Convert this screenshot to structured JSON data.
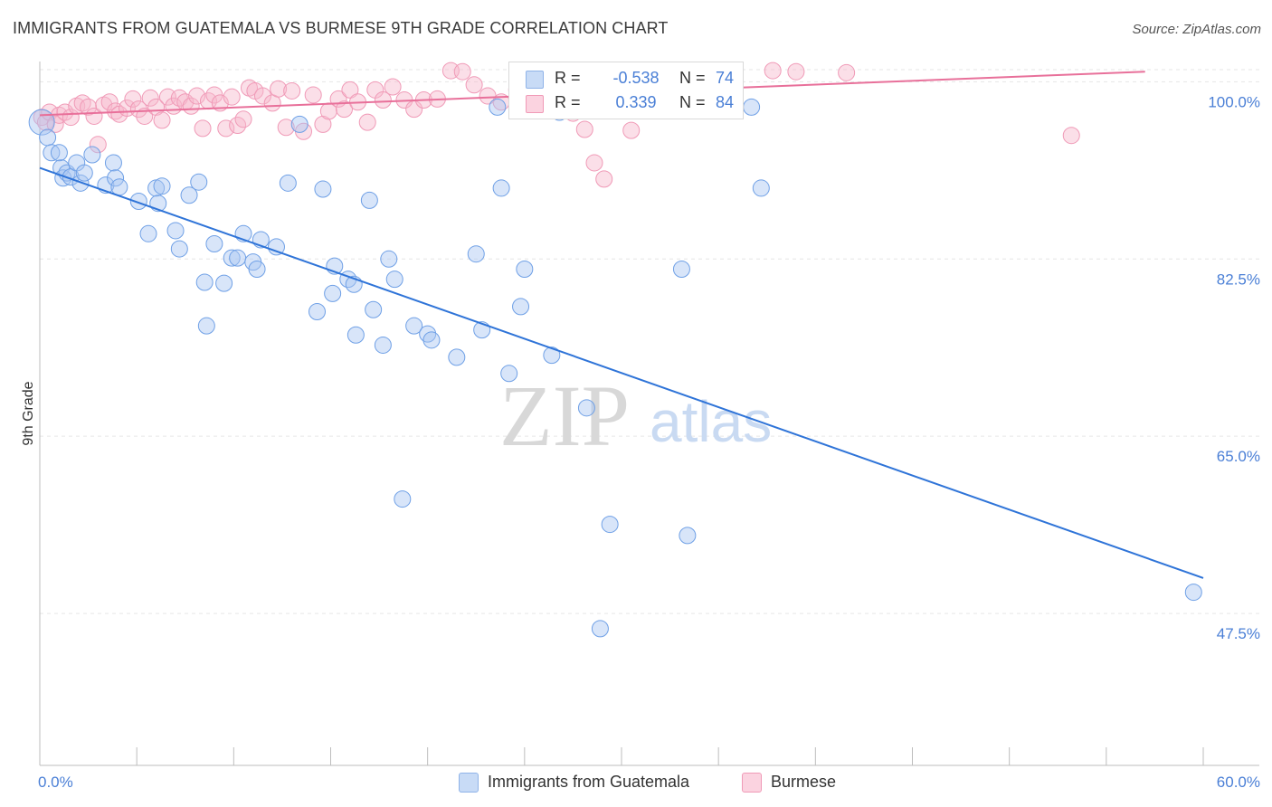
{
  "title": "IMMIGRANTS FROM GUATEMALA VS BURMESE 9TH GRADE CORRELATION CHART",
  "source": "Source: ZipAtlas.com",
  "watermark": {
    "zip": "ZIP",
    "atlas": "atlas"
  },
  "legend": {
    "rows": [
      {
        "r_label": "R =",
        "r_value": "-0.538",
        "n_label": "N =",
        "n_value": "74",
        "color": "#a9c6f2"
      },
      {
        "r_label": "R =",
        "r_value": "0.339",
        "n_label": "N =",
        "n_value": "84",
        "color": "#f7b8cc"
      }
    ]
  },
  "bottom_legend": {
    "items": [
      {
        "label": "Immigrants from Guatemala",
        "color": "#a9c6f2"
      },
      {
        "label": "Burmese",
        "color": "#f7b8cc"
      }
    ]
  },
  "chart_data": {
    "type": "scatter",
    "title": "IMMIGRANTS FROM GUATEMALA VS BURMESE 9TH GRADE CORRELATION CHART",
    "xlabel": "",
    "ylabel": "9th Grade",
    "xlim": [
      0,
      60
    ],
    "ylim": [
      32.5,
      102
    ],
    "x_tick_labels": [
      "0.0%",
      "60.0%"
    ],
    "y_ticks": [
      47.5,
      65.0,
      82.5,
      100.0
    ],
    "y_tick_labels": [
      "47.5%",
      "65.0%",
      "82.5%",
      "100.0%"
    ],
    "colors": {
      "guatemala": "#6fa0e6",
      "guatemala_line": "#2f74d8",
      "burmese": "#f09ab7",
      "burmese_line": "#e8709a"
    },
    "series": [
      {
        "name": "Immigrants from Guatemala",
        "trend": {
          "x": [
            0,
            60
          ],
          "y": [
            91.5,
            51.0
          ]
        },
        "points": [
          [
            0.1,
            96.0
          ],
          [
            0.4,
            94.5
          ],
          [
            0.6,
            93.0
          ],
          [
            1.1,
            91.5
          ],
          [
            1.0,
            93.0
          ],
          [
            1.2,
            90.5
          ],
          [
            1.4,
            91.0
          ],
          [
            1.6,
            90.6
          ],
          [
            1.9,
            92.0
          ],
          [
            2.1,
            90.0
          ],
          [
            2.3,
            91.0
          ],
          [
            2.7,
            92.8
          ],
          [
            3.4,
            89.8
          ],
          [
            3.8,
            92.0
          ],
          [
            3.9,
            90.5
          ],
          [
            4.1,
            89.6
          ],
          [
            5.1,
            88.2
          ],
          [
            5.6,
            85.0
          ],
          [
            6.0,
            89.5
          ],
          [
            6.1,
            88.0
          ],
          [
            6.3,
            89.7
          ],
          [
            7.0,
            85.3
          ],
          [
            7.2,
            83.5
          ],
          [
            7.7,
            88.8
          ],
          [
            8.2,
            90.1
          ],
          [
            8.5,
            80.2
          ],
          [
            8.6,
            75.9
          ],
          [
            9.0,
            84.0
          ],
          [
            9.5,
            80.1
          ],
          [
            9.9,
            82.6
          ],
          [
            10.2,
            82.6
          ],
          [
            10.5,
            85.0
          ],
          [
            11.0,
            82.2
          ],
          [
            11.4,
            84.4
          ],
          [
            11.2,
            81.5
          ],
          [
            12.2,
            83.7
          ],
          [
            12.8,
            90.0
          ],
          [
            13.4,
            95.8
          ],
          [
            14.3,
            77.3
          ],
          [
            14.6,
            89.4
          ],
          [
            15.1,
            79.1
          ],
          [
            15.2,
            81.8
          ],
          [
            15.9,
            80.5
          ],
          [
            16.2,
            80.0
          ],
          [
            16.3,
            75.0
          ],
          [
            17.0,
            88.3
          ],
          [
            17.2,
            77.5
          ],
          [
            17.7,
            74.0
          ],
          [
            18.0,
            82.5
          ],
          [
            18.3,
            80.5
          ],
          [
            18.7,
            58.8
          ],
          [
            19.3,
            75.9
          ],
          [
            20.0,
            75.1
          ],
          [
            20.2,
            74.5
          ],
          [
            21.5,
            72.8
          ],
          [
            22.5,
            83.0
          ],
          [
            22.8,
            75.5
          ],
          [
            23.6,
            97.5
          ],
          [
            23.8,
            89.5
          ],
          [
            24.2,
            71.2
          ],
          [
            24.8,
            77.8
          ],
          [
            25.0,
            81.5
          ],
          [
            26.4,
            73.0
          ],
          [
            26.8,
            97.0
          ],
          [
            28.2,
            67.8
          ],
          [
            28.9,
            46.0
          ],
          [
            29.4,
            56.3
          ],
          [
            32.3,
            97.8
          ],
          [
            33.1,
            81.5
          ],
          [
            33.4,
            55.2
          ],
          [
            35.3,
            98.0
          ],
          [
            36.7,
            97.5
          ],
          [
            37.2,
            89.5
          ],
          [
            59.5,
            49.6
          ]
        ]
      },
      {
        "name": "Burmese",
        "trend": {
          "x": [
            0,
            57
          ],
          "y": [
            96.7,
            101.0
          ]
        },
        "points": [
          [
            0.1,
            96.5
          ],
          [
            0.3,
            96.0
          ],
          [
            0.5,
            97.0
          ],
          [
            0.8,
            95.8
          ],
          [
            1.0,
            96.7
          ],
          [
            1.3,
            97.0
          ],
          [
            1.6,
            96.5
          ],
          [
            1.9,
            97.6
          ],
          [
            2.2,
            97.9
          ],
          [
            2.5,
            97.5
          ],
          [
            2.8,
            96.6
          ],
          [
            3.0,
            93.8
          ],
          [
            3.3,
            97.7
          ],
          [
            3.6,
            98.0
          ],
          [
            3.9,
            97.1
          ],
          [
            4.1,
            96.8
          ],
          [
            4.5,
            97.4
          ],
          [
            4.8,
            98.3
          ],
          [
            5.1,
            97.3
          ],
          [
            5.4,
            96.6
          ],
          [
            5.7,
            98.4
          ],
          [
            6.0,
            97.5
          ],
          [
            6.3,
            96.2
          ],
          [
            6.6,
            98.5
          ],
          [
            6.9,
            97.6
          ],
          [
            7.2,
            98.4
          ],
          [
            7.5,
            98.0
          ],
          [
            7.8,
            97.6
          ],
          [
            8.1,
            98.6
          ],
          [
            8.4,
            95.4
          ],
          [
            8.7,
            98.1
          ],
          [
            9.0,
            98.7
          ],
          [
            9.3,
            97.9
          ],
          [
            9.6,
            95.4
          ],
          [
            9.9,
            98.5
          ],
          [
            10.2,
            95.7
          ],
          [
            10.5,
            96.3
          ],
          [
            10.8,
            99.4
          ],
          [
            11.1,
            99.1
          ],
          [
            11.5,
            98.6
          ],
          [
            12.0,
            97.9
          ],
          [
            12.3,
            99.3
          ],
          [
            12.7,
            95.5
          ],
          [
            13.0,
            99.1
          ],
          [
            13.6,
            95.1
          ],
          [
            14.1,
            98.7
          ],
          [
            14.6,
            95.8
          ],
          [
            14.9,
            97.1
          ],
          [
            15.4,
            98.3
          ],
          [
            15.7,
            97.3
          ],
          [
            16.0,
            99.2
          ],
          [
            16.4,
            98.0
          ],
          [
            16.9,
            96.0
          ],
          [
            17.3,
            99.2
          ],
          [
            17.7,
            98.2
          ],
          [
            18.2,
            99.5
          ],
          [
            18.8,
            98.2
          ],
          [
            19.3,
            97.3
          ],
          [
            19.8,
            98.2
          ],
          [
            20.5,
            98.3
          ],
          [
            21.2,
            101.1
          ],
          [
            21.8,
            101.0
          ],
          [
            22.4,
            99.7
          ],
          [
            23.1,
            98.6
          ],
          [
            23.8,
            98.0
          ],
          [
            24.6,
            99.2
          ],
          [
            25.0,
            101.0
          ],
          [
            25.6,
            98.2
          ],
          [
            26.3,
            101.1
          ],
          [
            26.9,
            100.0
          ],
          [
            27.5,
            96.9
          ],
          [
            28.1,
            95.3
          ],
          [
            28.6,
            92.0
          ],
          [
            29.1,
            90.4
          ],
          [
            29.8,
            101.0
          ],
          [
            30.5,
            95.2
          ],
          [
            31.4,
            99.5
          ],
          [
            32.2,
            101.1
          ],
          [
            33.5,
            101.0
          ],
          [
            35.4,
            101.0
          ],
          [
            37.8,
            101.1
          ],
          [
            39.0,
            101.0
          ],
          [
            41.6,
            100.9
          ],
          [
            53.2,
            94.7
          ]
        ]
      }
    ]
  }
}
